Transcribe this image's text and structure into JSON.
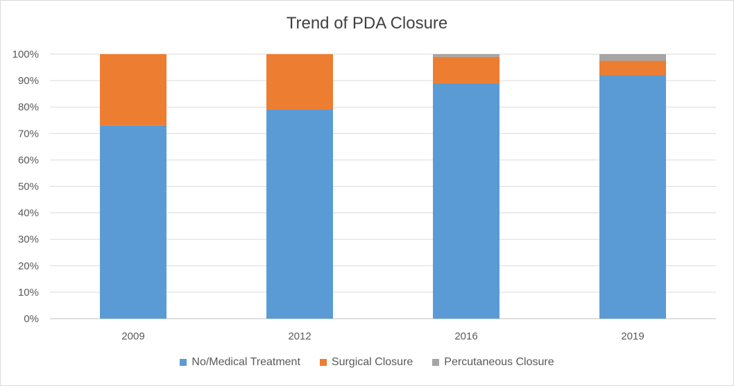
{
  "chart_data": {
    "type": "bar",
    "stacked": true,
    "title": "Trend of PDA Closure",
    "categories": [
      "2009",
      "2012",
      "2016",
      "2019"
    ],
    "ylim": [
      0,
      100
    ],
    "yticks": [
      "0%",
      "10%",
      "20%",
      "30%",
      "40%",
      "50%",
      "60%",
      "70%",
      "80%",
      "90%",
      "100%"
    ],
    "grid": true,
    "legend_position": "bottom",
    "series": [
      {
        "name": "No/Medical Treatment",
        "color": "#5b9bd5",
        "values": [
          73,
          79,
          89,
          92
        ]
      },
      {
        "name": "Surgical Closure",
        "color": "#ed7d31",
        "values": [
          27,
          21,
          10,
          5.5
        ]
      },
      {
        "name": "Percutaneous Closure",
        "color": "#a5a5a5",
        "values": [
          0,
          0,
          1,
          2.5
        ]
      }
    ]
  }
}
